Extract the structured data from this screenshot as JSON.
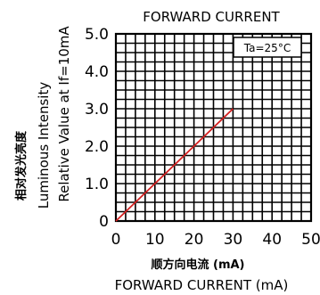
{
  "chart_data": {
    "type": "line",
    "title": "FORWARD CURRENT",
    "xlabel_cn": "顺方向电流 (mA)",
    "xlabel": "FORWARD CURRENT (mA)",
    "ylabel_cn": "相对发光亮度",
    "ylabel_1": "Luminous Intensity",
    "ylabel_2": "Relative Value at If=10mA",
    "annotation": "Ta=25°C",
    "xlim": [
      0,
      50
    ],
    "ylim": [
      0,
      5
    ],
    "x_ticks": [
      "0",
      "10",
      "20",
      "30",
      "40",
      "50"
    ],
    "y_ticks": [
      "0",
      "1.0",
      "2.0",
      "3.0",
      "4.0",
      "5.0"
    ],
    "grid": true,
    "x_minor_step": 2.5,
    "y_minor_step": 0.25,
    "series": [
      {
        "color": "#d42020",
        "x": [
          0,
          30
        ],
        "y": [
          0,
          3.0
        ]
      }
    ]
  }
}
